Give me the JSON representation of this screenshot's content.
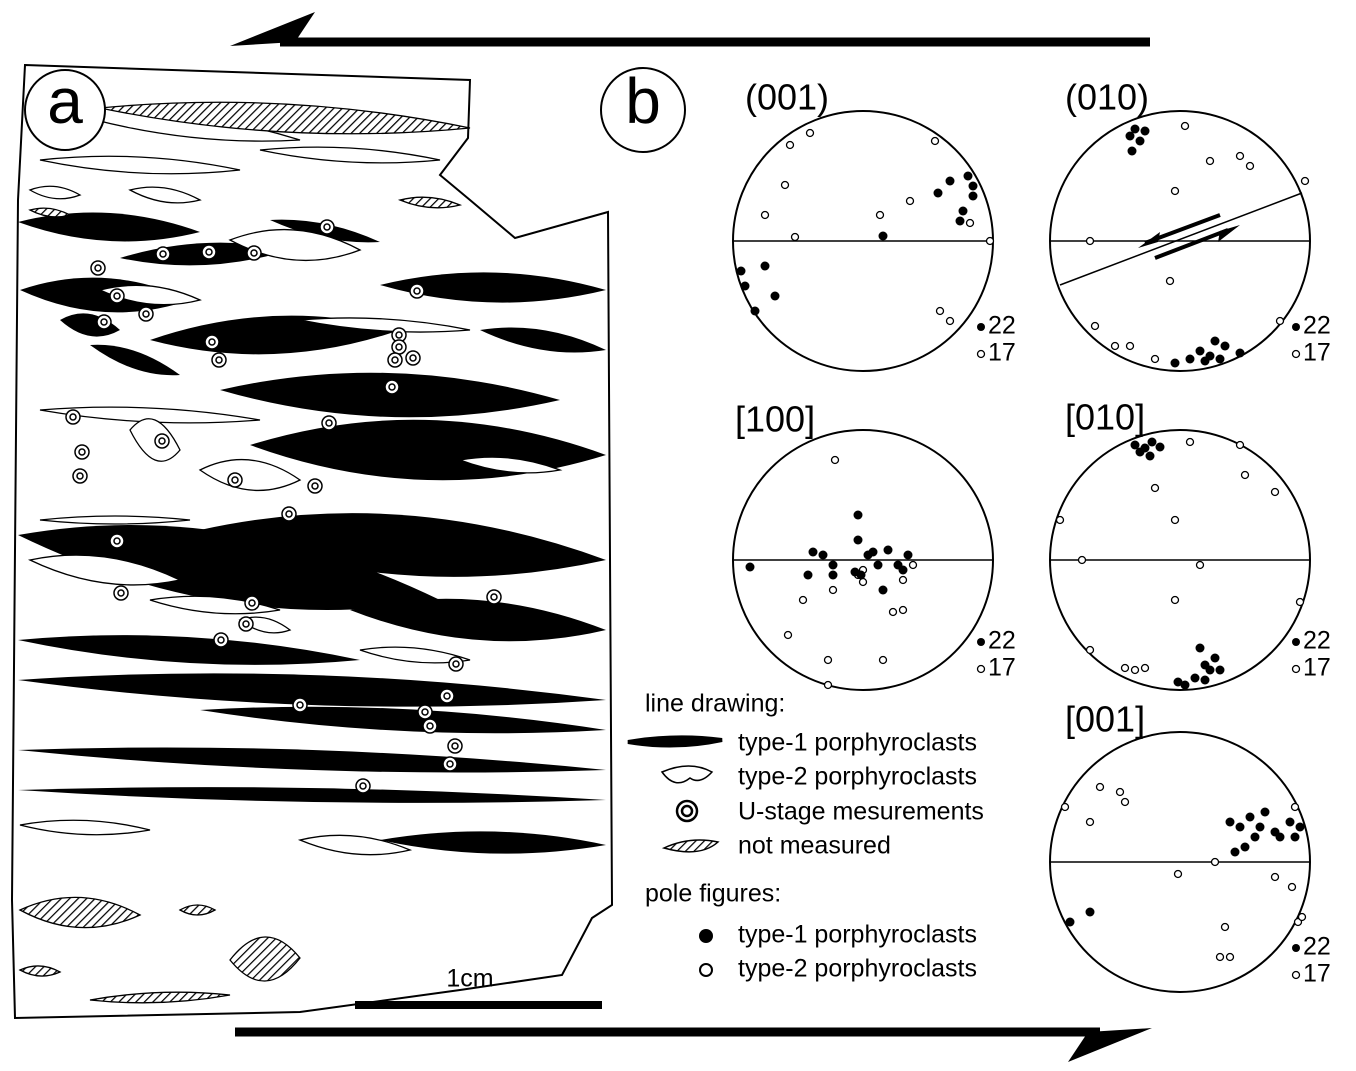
{
  "panel_a": {
    "label": "a",
    "scale_bar": "1cm"
  },
  "panel_b": {
    "label": "b",
    "pole_figures": [
      {
        "title": "(001)",
        "count_type1": 22,
        "count_type2": 17
      },
      {
        "title": "(010)",
        "count_type1": 22,
        "count_type2": 17
      },
      {
        "title": "[100]",
        "count_type1": 22,
        "count_type2": 17
      },
      {
        "title": "[010]",
        "count_type1": 22,
        "count_type2": 17
      },
      {
        "title": "[001]",
        "count_type1": 22,
        "count_type2": 17
      }
    ]
  },
  "legend": {
    "line_drawing_title": "line drawing:",
    "line_drawing_items": [
      "type-1 porphyroclasts",
      "type-2 porphyroclasts",
      "U-stage mesurements",
      "not measured"
    ],
    "pole_figures_title": "pole figures:",
    "pole_figure_items": [
      "type-1 porphyroclasts",
      "type-2 porphyroclasts"
    ]
  }
}
